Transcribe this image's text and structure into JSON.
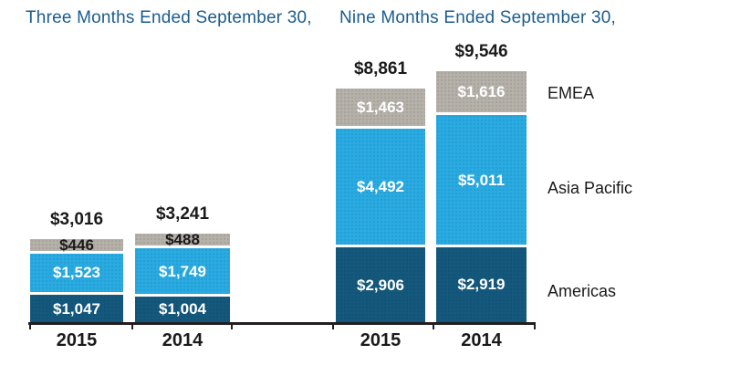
{
  "chart_data": {
    "type": "bar",
    "stacked": true,
    "grid": false,
    "legend_position": "right",
    "groups": [
      {
        "title": "Three Months Ended September 30,",
        "categories": [
          "2015",
          "2014"
        ],
        "totals": [
          3016,
          3241
        ],
        "total_labels": [
          "$3,016",
          "$3,241"
        ],
        "series": [
          {
            "name": "Americas",
            "values": [
              1047,
              1004
            ],
            "labels": [
              "$1,047",
              "$1,004"
            ]
          },
          {
            "name": "Asia Pacific",
            "values": [
              1523,
              1749
            ],
            "labels": [
              "$1,523",
              "$1,749"
            ]
          },
          {
            "name": "EMEA",
            "values": [
              446,
              488
            ],
            "labels": [
              "$446",
              "$488"
            ]
          }
        ]
      },
      {
        "title": "Nine Months Ended September 30,",
        "categories": [
          "2015",
          "2014"
        ],
        "totals": [
          8861,
          9546
        ],
        "total_labels": [
          "$8,861",
          "$9,546"
        ],
        "series": [
          {
            "name": "Americas",
            "values": [
              2906,
              2919
            ],
            "labels": [
              "$2,906",
              "$2,919"
            ]
          },
          {
            "name": "Asia Pacific",
            "values": [
              4492,
              5011
            ],
            "labels": [
              "$4,492",
              "$5,011"
            ]
          },
          {
            "name": "EMEA",
            "values": [
              1463,
              1616
            ],
            "labels": [
              "$1,463",
              "$1,616"
            ]
          }
        ]
      }
    ],
    "legend": [
      "EMEA",
      "Asia Pacific",
      "Americas"
    ],
    "colors": {
      "background": "#ffffff",
      "title": "#1b5c8e",
      "text": "#1a1a1a",
      "axis": "#231f20",
      "value_label_light": "#ffffff",
      "value_label_dark": "#1a1a1a",
      "series": {
        "Americas": "#14587c",
        "Asia Pacific": "#29abe2",
        "EMEA": "#b5b0a8"
      }
    }
  }
}
